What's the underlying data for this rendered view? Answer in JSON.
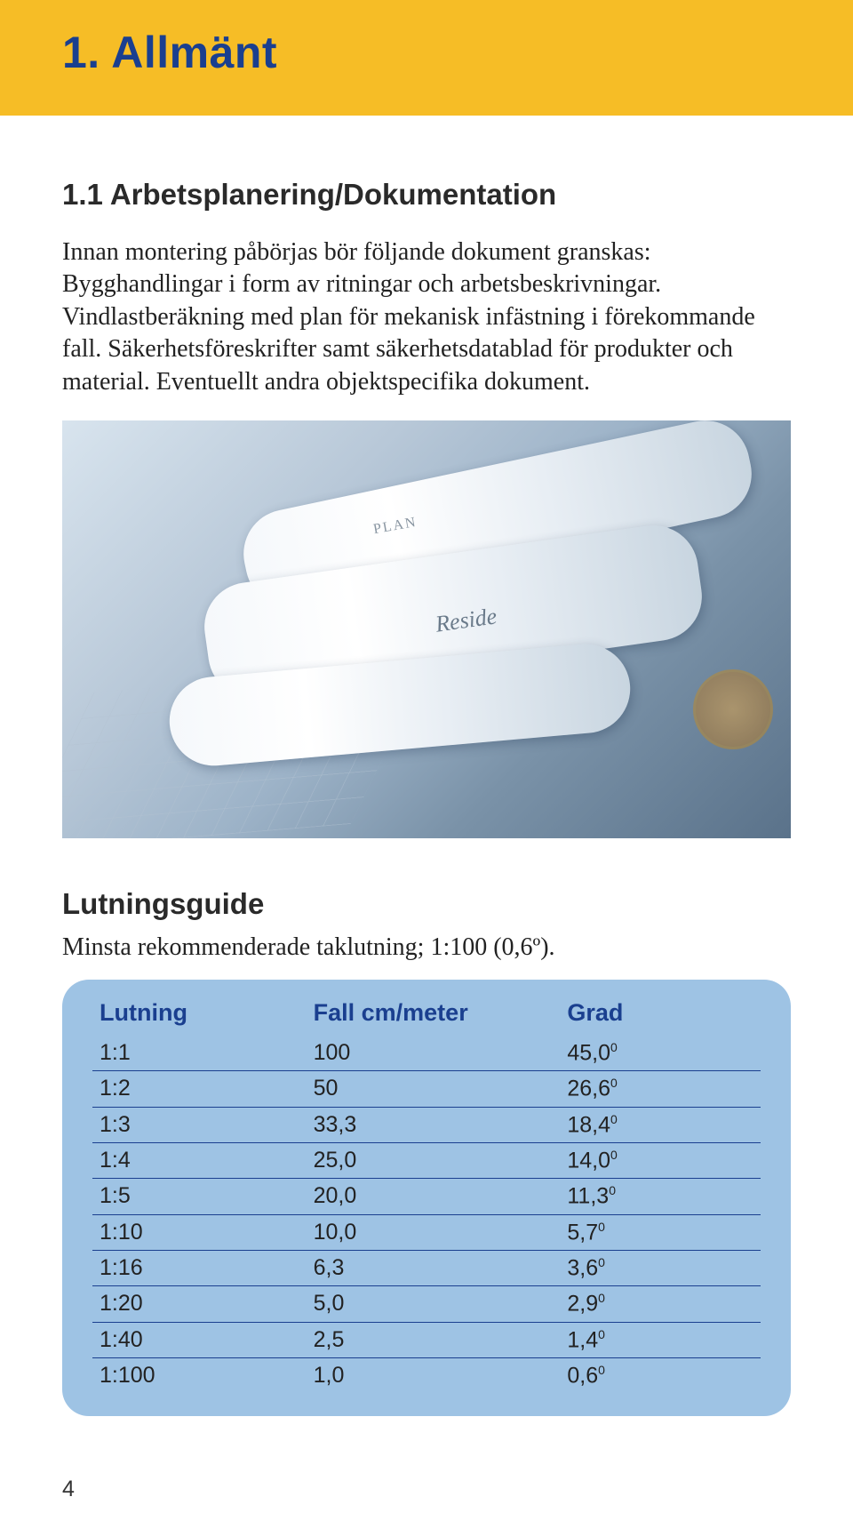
{
  "page": {
    "title": "1. Allmänt",
    "number": "4"
  },
  "section": {
    "heading": "1.1 Arbetsplanering/Dokumentation",
    "body": "Innan montering påbörjas bör följande dokument granskas: Bygghandlingar i form av ritningar och arbetsbeskrivningar. Vindlastberäkning med plan för mekanisk infästning i förekommande fall. Säkerhetsföreskrifter samt säkerhetsdatablad för produkter och material. Eventuellt andra objektspecifika dokument."
  },
  "image": {
    "alt": "Rullade byggritningar på ett bord med passare",
    "label_plan": "PLAN",
    "label_reside": "Reside"
  },
  "guide": {
    "heading": "Lutningsguide",
    "subtitle": "Minsta rekommenderade taklutning; 1:100 (0,6º).",
    "columns": [
      "Lutning",
      "Fall cm/meter",
      "Grad"
    ],
    "rows": [
      [
        "1:1",
        "100",
        "45,0",
        "0"
      ],
      [
        "1:2",
        "50",
        "26,6",
        "0"
      ],
      [
        "1:3",
        "33,3",
        "18,4",
        "0"
      ],
      [
        "1:4",
        "25,0",
        "14,0",
        "0"
      ],
      [
        "1:5",
        "20,0",
        "11,3",
        "0"
      ],
      [
        "1:10",
        "10,0",
        "5,7",
        "0"
      ],
      [
        "1:16",
        "6,3",
        "3,6",
        "0"
      ],
      [
        "1:20",
        "5,0",
        "2,9",
        "0"
      ],
      [
        "1:40",
        "2,5",
        "1,4",
        "0"
      ],
      [
        "1:100",
        "1,0",
        "0,6",
        "0"
      ]
    ],
    "table_style": {
      "background": "#9ec3e4",
      "border_radius": 30,
      "header_color": "#1a3f8f",
      "row_border_color": "#1a3f8f",
      "header_fontsize": 27,
      "cell_fontsize": 25
    }
  },
  "colors": {
    "header_band": "#f6bd26",
    "title_blue": "#1a3f8f",
    "text": "#222222",
    "page_bg": "#ffffff"
  },
  "typography": {
    "title_fontsize": 50,
    "heading_fontsize": 33,
    "body_fontsize": 28,
    "body_family": "Garamond serif",
    "heading_family": "Arial sans-serif"
  }
}
